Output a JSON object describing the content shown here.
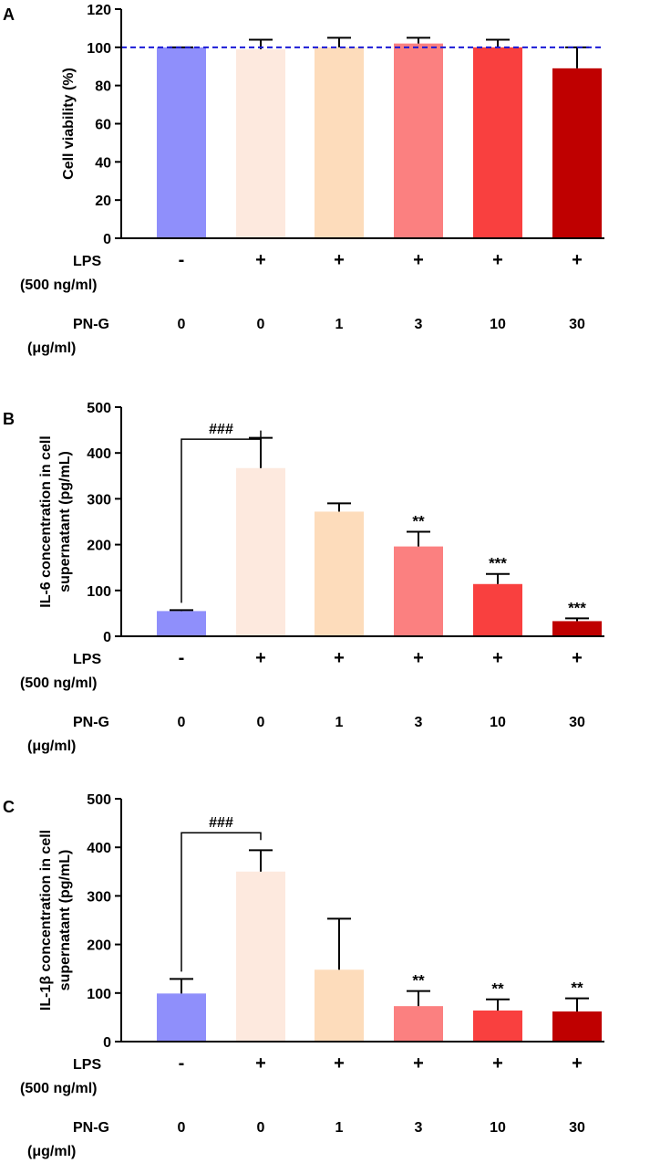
{
  "chart_data": [
    {
      "type": "bar",
      "panel_label": "A",
      "ylabel": "Cell viability (%)",
      "ylabel_lines": [
        "Cell viability (%)"
      ],
      "ylim": [
        0,
        120
      ],
      "yticks": [
        0,
        20,
        40,
        60,
        80,
        100,
        120
      ],
      "reference_line": 100,
      "row1_label": [
        "LPS",
        "(500 ng/ml)"
      ],
      "row2_label": [
        "PN-G",
        "(μg/ml)"
      ],
      "lps": [
        "-",
        "+",
        "+",
        "+",
        "+",
        "+"
      ],
      "png": [
        "0",
        "0",
        "1",
        "3",
        "10",
        "30"
      ],
      "values": [
        100,
        99,
        100,
        102,
        100,
        89
      ],
      "errors": [
        0,
        5,
        5,
        3,
        4,
        11
      ],
      "colors": [
        "#8f8ffb",
        "#fde9de",
        "#fddcbb",
        "#fb8080",
        "#f9403f",
        "#bf0000"
      ],
      "significance": [
        "",
        "",
        "",
        "",
        "",
        ""
      ],
      "bracket": null
    },
    {
      "type": "bar",
      "panel_label": "B",
      "ylabel": "IL-6 concentration in cell supernatant (pg/mL)",
      "ylabel_lines": [
        "IL-6  concentration in cell",
        "supernatant (pg/mL)"
      ],
      "ylim": [
        0,
        500
      ],
      "yticks": [
        0,
        100,
        200,
        300,
        400,
        500
      ],
      "reference_line": null,
      "row1_label": [
        "LPS",
        "(500 ng/ml)"
      ],
      "row2_label": [
        "PN-G",
        "(μg/ml)"
      ],
      "lps": [
        "-",
        "+",
        "+",
        "+",
        "+",
        "+"
      ],
      "png": [
        "0",
        "0",
        "1",
        "3",
        "10",
        "30"
      ],
      "values": [
        55,
        367,
        272,
        196,
        114,
        33
      ],
      "errors": [
        2,
        66,
        18,
        32,
        22,
        6
      ],
      "colors": [
        "#8f8ffb",
        "#fde9de",
        "#fddcbb",
        "#fb8080",
        "#f9403f",
        "#bf0000"
      ],
      "significance": [
        "",
        "",
        "",
        "**",
        "***",
        "***"
      ],
      "bracket": {
        "from": 0,
        "to": 1,
        "level": 430,
        "label": "###"
      }
    },
    {
      "type": "bar",
      "panel_label": "C",
      "ylabel": "IL-1β concentration in cell supernatant (pg/mL)",
      "ylabel_lines": [
        "IL-1β  concentration in cell",
        "supernatant (pg/mL)"
      ],
      "ylim": [
        0,
        500
      ],
      "yticks": [
        0,
        100,
        200,
        300,
        400,
        500
      ],
      "reference_line": null,
      "row1_label": [
        "LPS",
        "(500 ng/ml)"
      ],
      "row2_label": [
        "PN-G",
        "(μg/ml)"
      ],
      "lps": [
        "-",
        "+",
        "+",
        "+",
        "+",
        "+"
      ],
      "png": [
        "0",
        "0",
        "1",
        "3",
        "10",
        "30"
      ],
      "values": [
        99,
        350,
        148,
        73,
        64,
        62
      ],
      "errors": [
        30,
        44,
        105,
        31,
        23,
        27
      ],
      "colors": [
        "#8f8ffb",
        "#fde9de",
        "#fddcbb",
        "#fb8080",
        "#f9403f",
        "#bf0000"
      ],
      "significance": [
        "",
        "",
        "",
        "**",
        "**",
        "**"
      ],
      "bracket": {
        "from": 0,
        "to": 1,
        "level": 430,
        "label": "###"
      }
    }
  ]
}
